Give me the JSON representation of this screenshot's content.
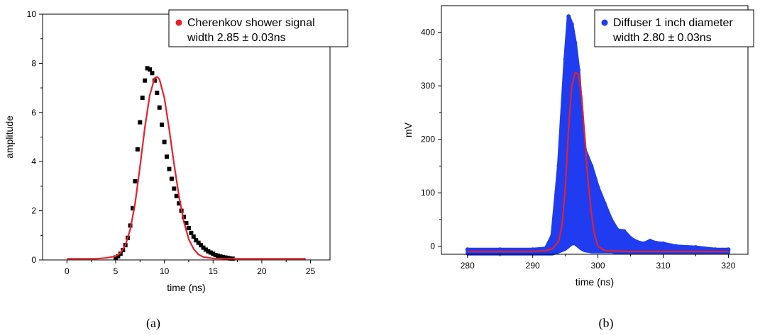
{
  "colors": {
    "background": "#ffffff",
    "axis": "#000000",
    "data_black": "#000000",
    "data_blue": "#1f3cf0",
    "fit_red": "#e8202a"
  },
  "captions": {
    "a": "(a)",
    "b": "(b)"
  },
  "chart_data": [
    {
      "type": "scatter",
      "title": "",
      "xlabel": "time (ns)",
      "ylabel": "amplitude",
      "xlim": [
        -2.5,
        27
      ],
      "ylim": [
        0,
        10
      ],
      "xticks": [
        0,
        5,
        10,
        15,
        20,
        25
      ],
      "yticks": [
        0,
        2,
        4,
        6,
        8,
        10
      ],
      "grid": false,
      "legend": {
        "position": "top-right",
        "lines": [
          "Cherenkov shower signal",
          "width 2.85 ± 0.03ns"
        ]
      },
      "series": [
        {
          "name": "Cherenkov shower signal",
          "kind": "markers",
          "marker": "square",
          "color": "#000000",
          "x": [
            5.0,
            5.25,
            5.5,
            5.75,
            6.0,
            6.25,
            6.5,
            6.75,
            7.0,
            7.25,
            7.5,
            7.75,
            8.0,
            8.25,
            8.5,
            8.75,
            9.0,
            9.25,
            9.5,
            9.75,
            10.0,
            10.25,
            10.5,
            10.75,
            11.0,
            11.25,
            11.5,
            11.75,
            12.0,
            12.25,
            12.5,
            12.75,
            13.0,
            13.25,
            13.5,
            13.75,
            14.0,
            14.25,
            14.5,
            14.75,
            15.0,
            15.25,
            15.5,
            15.75,
            16.0,
            16.25,
            16.5,
            16.75,
            17.0
          ],
          "y": [
            0.1,
            0.15,
            0.25,
            0.4,
            0.6,
            0.9,
            1.4,
            2.1,
            3.2,
            4.5,
            5.6,
            6.6,
            7.3,
            7.8,
            7.75,
            7.6,
            7.3,
            6.8,
            6.2,
            5.5,
            4.8,
            4.2,
            3.7,
            3.3,
            2.9,
            2.6,
            2.3,
            2.0,
            1.75,
            1.5,
            1.3,
            1.1,
            0.95,
            0.8,
            0.7,
            0.6,
            0.5,
            0.42,
            0.35,
            0.3,
            0.25,
            0.2,
            0.17,
            0.14,
            0.12,
            0.1,
            0.08,
            0.06,
            0.05
          ]
        },
        {
          "name": "fit",
          "kind": "line",
          "color": "#e8202a",
          "x": [
            0,
            2,
            3,
            4,
            5,
            5.5,
            6,
            6.5,
            7,
            7.5,
            8,
            8.5,
            9,
            9.25,
            9.5,
            10,
            10.5,
            11,
            11.5,
            12,
            12.5,
            13,
            13.5,
            14,
            15,
            16,
            24.5
          ],
          "y": [
            0.05,
            0.05,
            0.05,
            0.08,
            0.15,
            0.28,
            0.6,
            1.25,
            2.3,
            3.8,
            5.4,
            6.7,
            7.4,
            7.45,
            7.35,
            6.6,
            5.3,
            3.9,
            2.6,
            1.55,
            0.85,
            0.45,
            0.22,
            0.12,
            0.06,
            0.05,
            0.05
          ]
        }
      ]
    },
    {
      "type": "scatter",
      "title": "",
      "xlabel": "time (ns)",
      "ylabel": "mV",
      "xlim": [
        276,
        323
      ],
      "ylim": [
        -15,
        450
      ],
      "xticks": [
        280,
        290,
        300,
        310,
        320
      ],
      "yticks": [
        0,
        100,
        200,
        300,
        400
      ],
      "grid": false,
      "legend": {
        "position": "top-right",
        "lines": [
          "Diffuser 1 inch diameter",
          "width 2.80 ± 0.03ns"
        ]
      },
      "series": [
        {
          "name": "Diffuser 1 inch diameter",
          "kind": "band",
          "marker": "circle",
          "color": "#1f3cf0",
          "x": [
            280,
            285,
            290,
            292,
            293,
            294,
            295,
            295.5,
            296,
            296.5,
            297,
            297.5,
            298,
            299,
            300,
            301,
            302,
            303,
            304,
            305,
            306,
            307,
            308,
            309,
            310,
            312,
            315,
            318,
            320
          ],
          "upper": [
            -6,
            -6,
            -6,
            -4,
            20,
            150,
            350,
            430,
            415,
            380,
            330,
            250,
            180,
            150,
            110,
            80,
            50,
            30,
            28,
            15,
            8,
            5,
            10,
            6,
            5,
            0,
            -2,
            -6,
            -6
          ],
          "lower": [
            -14,
            -14,
            -14,
            -14,
            -14,
            -10,
            -5,
            0,
            5,
            5,
            0,
            -5,
            -8,
            -10,
            -10,
            -10,
            -10,
            -12,
            -12,
            -12,
            -12,
            -12,
            -12,
            -12,
            -12,
            -12,
            -12,
            -12,
            -12
          ]
        },
        {
          "name": "fit",
          "kind": "line",
          "color": "#e8202a",
          "x": [
            280,
            290,
            292,
            293,
            294,
            294.5,
            295,
            295.5,
            296,
            296.5,
            297,
            297.5,
            298,
            298.5,
            299,
            299.5,
            300,
            301,
            305,
            320
          ],
          "y": [
            -10,
            -10,
            -8,
            -5,
            10,
            40,
            110,
            220,
            300,
            325,
            322,
            280,
            200,
            120,
            60,
            20,
            0,
            -8,
            -10,
            -10
          ]
        }
      ]
    }
  ]
}
